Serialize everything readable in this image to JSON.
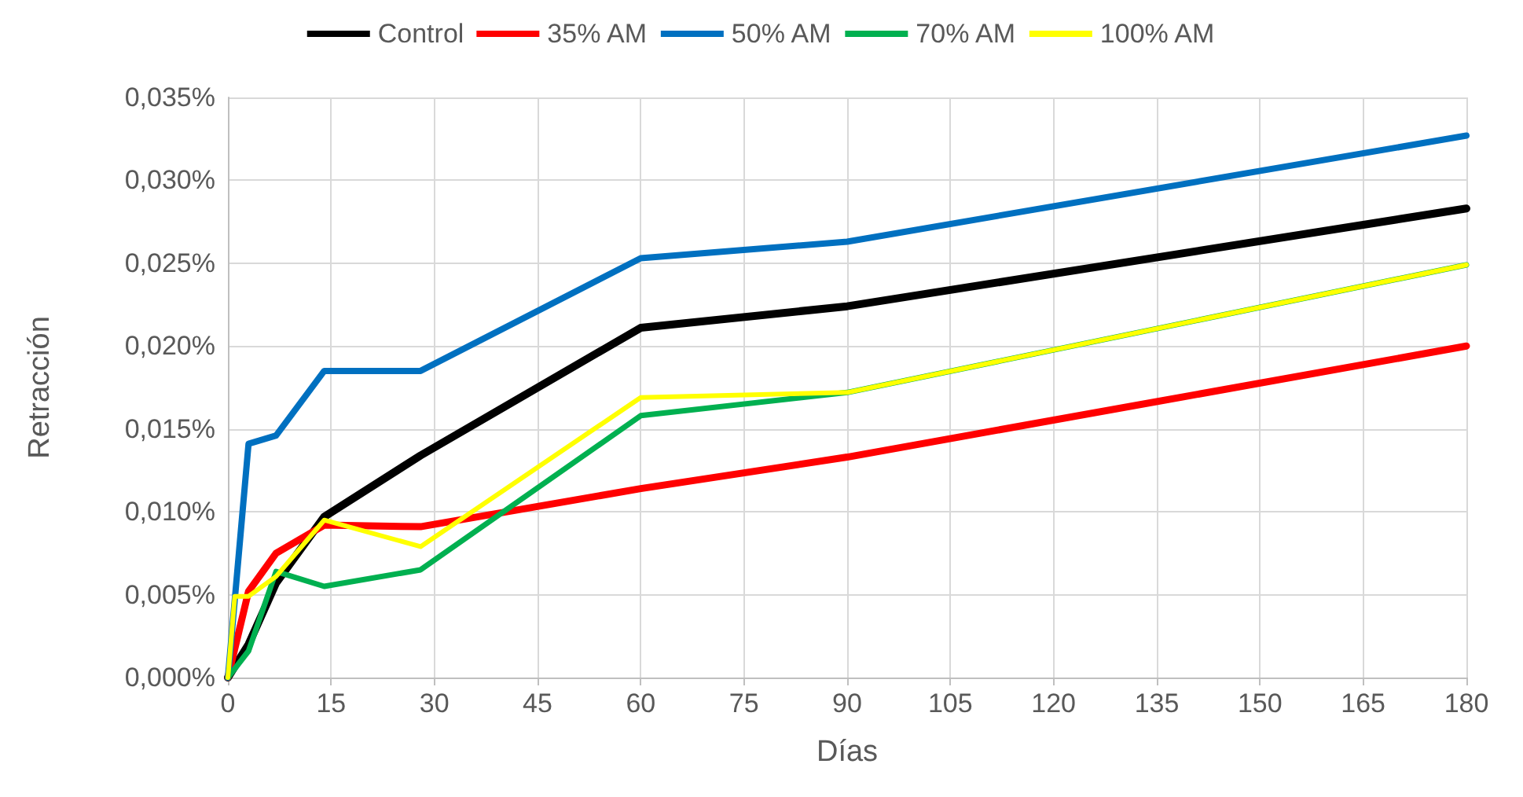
{
  "chart_data": {
    "type": "line",
    "xlabel": "Días",
    "ylabel": "Retracción",
    "legend": "top",
    "grid": true,
    "marker": "none",
    "line_style": "solid",
    "xlim": [
      0,
      180
    ],
    "xticks": [
      0,
      15,
      30,
      45,
      60,
      75,
      90,
      105,
      120,
      135,
      150,
      165,
      180
    ],
    "ylim": [
      0,
      0.035
    ],
    "yticks": [
      {
        "value": 0,
        "label": "0,000%"
      },
      {
        "value": 0.005,
        "label": "0,005%"
      },
      {
        "value": 0.01,
        "label": "0,010%"
      },
      {
        "value": 0.015,
        "label": "0,015%"
      },
      {
        "value": 0.02,
        "label": "0,020%"
      },
      {
        "value": 0.025,
        "label": "0,025%"
      },
      {
        "value": 0.03,
        "label": "0,030%"
      },
      {
        "value": 0.035,
        "label": "0,035%"
      }
    ],
    "series": [
      {
        "name": "Control",
        "color": "#000000",
        "x": [
          0,
          3,
          7,
          14,
          28,
          60,
          90,
          180
        ],
        "values": [
          0,
          0.002,
          0.0057,
          0.0097,
          0.0134,
          0.0211,
          0.0224,
          0.0283
        ]
      },
      {
        "name": "35% AM",
        "color": "#ff0000",
        "x": [
          0,
          3,
          7,
          14,
          28,
          60,
          90,
          180
        ],
        "values": [
          0,
          0.0052,
          0.0075,
          0.0092,
          0.0091,
          0.0114,
          0.0133,
          0.02
        ]
      },
      {
        "name": "50% AM",
        "color": "#0070c0",
        "x": [
          0,
          3,
          7,
          14,
          28,
          60,
          90,
          180
        ],
        "values": [
          0,
          0.0141,
          0.0146,
          0.0185,
          0.0185,
          0.0253,
          0.0263,
          0.0327
        ]
      },
      {
        "name": "70% AM",
        "color": "#00b050",
        "x": [
          0,
          3,
          7,
          14,
          28,
          60,
          90,
          180
        ],
        "values": [
          0,
          0.0016,
          0.0064,
          0.0055,
          0.0065,
          0.0158,
          0.0172,
          0.0249
        ]
      },
      {
        "name": "100% AM",
        "color": "#ffff00",
        "x": [
          0,
          1,
          3,
          7,
          14,
          28,
          60,
          90,
          180
        ],
        "values": [
          0,
          0.0049,
          0.0049,
          0.0061,
          0.0095,
          0.0079,
          0.0169,
          0.0172,
          0.0249
        ]
      }
    ]
  }
}
